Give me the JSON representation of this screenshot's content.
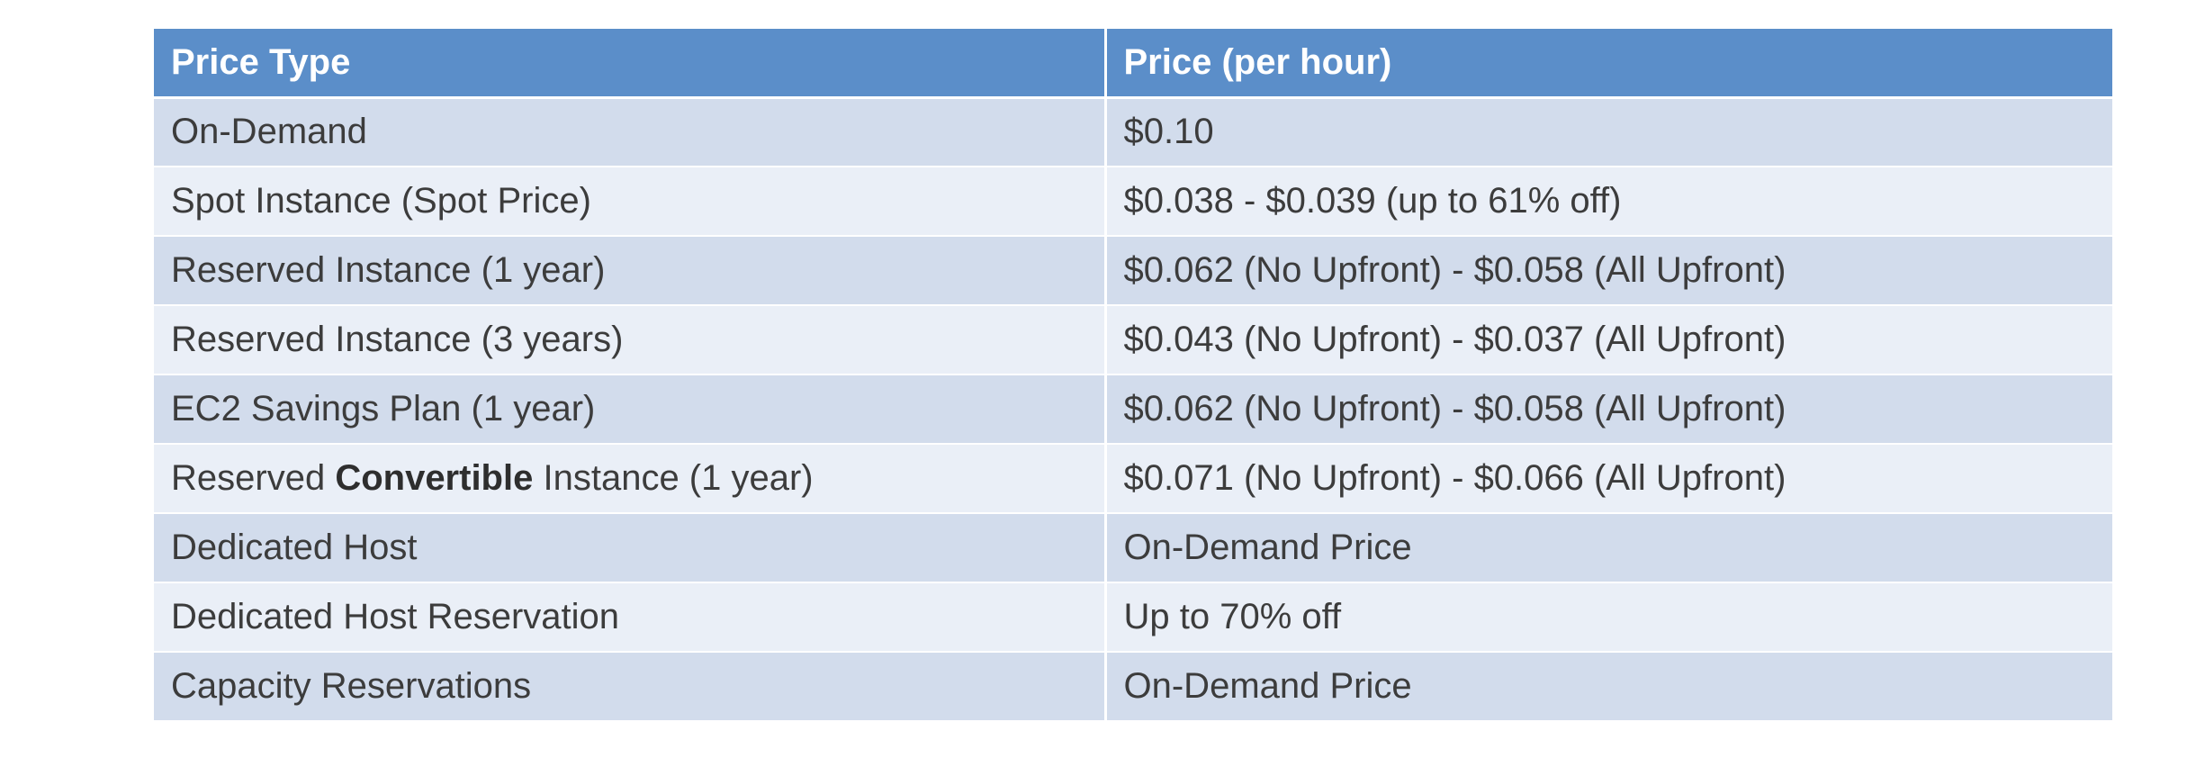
{
  "table": {
    "headers": [
      "Price Type",
      "Price (per hour)"
    ],
    "rows": [
      {
        "type": "On-Demand",
        "price": "$0.10"
      },
      {
        "type": "Spot Instance (Spot Price)",
        "price": "$0.038 - $0.039 (up to 61% off)"
      },
      {
        "type": "Reserved Instance (1 year)",
        "price": "$0.062 (No Upfront) - $0.058 (All Upfront)"
      },
      {
        "type": "Reserved Instance (3 years)",
        "price": "$0.043 (No Upfront) - $0.037 (All Upfront)"
      },
      {
        "type": "EC2 Savings Plan (1 year)",
        "price": "$0.062 (No Upfront) - $0.058 (All Upfront)"
      },
      {
        "type_prefix": "Reserved ",
        "type_bold": "Convertible",
        "type_suffix": " Instance (1 year)",
        "price": "$0.071 (No Upfront) - $0.066 (All Upfront)"
      },
      {
        "type": "Dedicated Host",
        "price": "On-Demand Price"
      },
      {
        "type": "Dedicated Host Reservation",
        "price": "Up to 70% off"
      },
      {
        "type": "Capacity Reservations",
        "price": "On-Demand Price"
      }
    ]
  },
  "colors": {
    "header_background": "#5b8ec9",
    "row_odd_background": "#d2dcec",
    "row_even_background": "#eaeff7",
    "text": "#3c3c3c"
  }
}
